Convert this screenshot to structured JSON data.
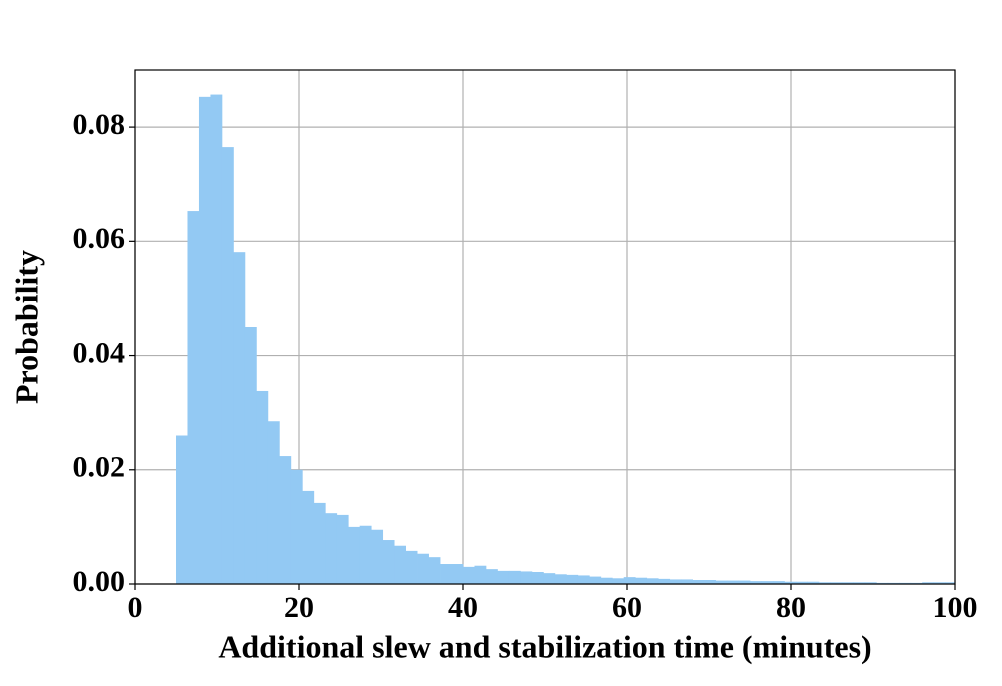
{
  "chart_data": {
    "type": "histogram",
    "xlabel": "Additional slew and stabilization time (minutes)",
    "ylabel": "Probability",
    "color": "#93c9f3",
    "bins": [
      5,
      6.4,
      7.8,
      9.2,
      10.6,
      12,
      13.4,
      14.8,
      16.2,
      17.6,
      19,
      20.4,
      21.8,
      23.2,
      24.6,
      26,
      27.4,
      28.8,
      30.2,
      31.6,
      33,
      34.4,
      35.8,
      37.2,
      38.6,
      40,
      41.4,
      42.8,
      44.2,
      45.6,
      47,
      48.4,
      49.8,
      51.2,
      52.6,
      54,
      55.4,
      56.8,
      58.2,
      59.6,
      61,
      62.4,
      63.8,
      65.2,
      66.6,
      68,
      69.4,
      70.8,
      72.2,
      73.6,
      75,
      76.4,
      77.8,
      79.2,
      80.6,
      82,
      83.4,
      84.8,
      86.2,
      87.6,
      89,
      90.4,
      91.8,
      93.2,
      94.6,
      96,
      97.4,
      98.8,
      100.2
    ],
    "values": [
      0.026,
      0.0653,
      0.0853,
      0.0857,
      0.0765,
      0.0581,
      0.045,
      0.0338,
      0.0285,
      0.0224,
      0.02,
      0.0163,
      0.0142,
      0.0124,
      0.0121,
      0.01,
      0.0102,
      0.0095,
      0.0077,
      0.0067,
      0.0058,
      0.0053,
      0.0047,
      0.0035,
      0.0035,
      0.003,
      0.0032,
      0.0026,
      0.0023,
      0.0023,
      0.0022,
      0.0021,
      0.0019,
      0.0017,
      0.0016,
      0.0015,
      0.0013,
      0.0011,
      0.001,
      0.0012,
      0.0011,
      0.001,
      0.0009,
      0.0008,
      0.0008,
      0.0007,
      0.0007,
      0.0006,
      0.0006,
      0.0006,
      0.0005,
      0.0005,
      0.0005,
      0.0004,
      0.0004,
      0.0004,
      0.0003,
      0.0003,
      0.0003,
      0.0003,
      0.0003,
      0.0002,
      0.0002,
      0.0002,
      0.0002,
      0.0003,
      0.0003,
      0.0003
    ],
    "xlim": [
      0,
      100
    ],
    "xticks": [
      0,
      20,
      40,
      60,
      80,
      100
    ],
    "ylim": [
      0,
      0.09
    ],
    "yticks": [
      {
        "value": 0,
        "label": "0.00"
      },
      0.02,
      0.04,
      0.06,
      0.08
    ],
    "grid": true
  }
}
